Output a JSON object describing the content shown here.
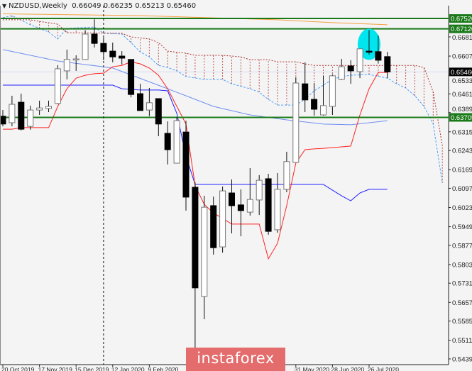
{
  "header": {
    "symbol": "NZDUSD,Weekly",
    "ohlc": "0.66049 0.66235 0.65213 0.65460"
  },
  "watermark": "instaforex",
  "chart_data": {
    "type": "candlestick",
    "symbol": "NZDUSD",
    "timeframe": "Weekly",
    "ylim": [
      0.5439,
      0.6775
    ],
    "grid": false,
    "colors": {
      "bull": "#ffffff",
      "bear": "#000000",
      "tenkan": "#ff2020",
      "kijun": "#2020ff",
      "ma_light": "#6f8ff0",
      "ma_orange": "#f5a040",
      "span_a": "#4aa0ff",
      "span_b": "#b03030",
      "level": "#1a7a1a",
      "highlight": "#00e5ee",
      "background": "#f4f4f4"
    },
    "y_ticks": [
      "0.67520",
      "0.67120",
      "0.66810",
      "0.66070",
      "0.65330",
      "0.64610",
      "0.63890",
      "0.63705",
      "0.63150",
      "0.62430",
      "0.61690",
      "0.60970",
      "0.60230",
      "0.59490",
      "0.58770",
      "0.58030",
      "0.57310",
      "0.56570",
      "0.55850",
      "0.55110",
      "0.54390"
    ],
    "x_labels": [
      {
        "index": 0,
        "text": "20 Oct 2019"
      },
      {
        "index": 4,
        "text": "17 Nov 2019"
      },
      {
        "index": 8,
        "text": "15 Dec 2019"
      },
      {
        "index": 12,
        "text": "12 Jan 2020"
      },
      {
        "index": 16,
        "text": "9 Feb 2020"
      },
      {
        "index": 32,
        "text": "31 May 2020"
      },
      {
        "index": 36,
        "text": "28 Jun 2020"
      },
      {
        "index": 40,
        "text": "26 Jul 2020"
      }
    ],
    "levels": [
      {
        "price": 0.6752,
        "label": "0.67520"
      },
      {
        "price": 0.6712,
        "label": "0.67120"
      },
      {
        "price": 0.63705,
        "label": "0.63705"
      }
    ],
    "current_price": {
      "price": 0.6546,
      "label": "0.65460"
    },
    "vertical_marker_index": 11,
    "highlight_index": 40,
    "candles": [
      [
        0.6375,
        0.6399,
        0.6336,
        0.6345
      ],
      [
        0.635,
        0.6454,
        0.6336,
        0.6421
      ],
      [
        0.6429,
        0.6462,
        0.632,
        0.6325
      ],
      [
        0.6336,
        0.6416,
        0.6323,
        0.6399
      ],
      [
        0.6399,
        0.6435,
        0.638,
        0.6407
      ],
      [
        0.6405,
        0.6435,
        0.6391,
        0.6413
      ],
      [
        0.6424,
        0.6572,
        0.6421,
        0.6558
      ],
      [
        0.655,
        0.6632,
        0.6517,
        0.6594
      ],
      [
        0.6594,
        0.661,
        0.655,
        0.6596
      ],
      [
        0.6594,
        0.6706,
        0.6594,
        0.6692
      ],
      [
        0.6692,
        0.6749,
        0.664,
        0.6656
      ],
      [
        0.6656,
        0.6678,
        0.6591,
        0.6624
      ],
      [
        0.6626,
        0.6659,
        0.6583,
        0.6604
      ],
      [
        0.6607,
        0.6626,
        0.6574,
        0.6599
      ],
      [
        0.6594,
        0.6594,
        0.6448,
        0.6459
      ],
      [
        0.6462,
        0.65,
        0.6397,
        0.6397
      ],
      [
        0.6399,
        0.6484,
        0.6375,
        0.6427
      ],
      [
        0.6443,
        0.6443,
        0.6298,
        0.6345
      ],
      [
        0.6309,
        0.6355,
        0.6189,
        0.6246
      ],
      [
        0.6194,
        0.6372,
        0.6194,
        0.6358
      ],
      [
        0.6314,
        0.6358,
        0.6011,
        0.6063
      ],
      [
        0.6101,
        0.612,
        0.5477,
        0.5713
      ],
      [
        0.568,
        0.6068,
        0.5592,
        0.6024
      ],
      [
        0.603,
        0.6065,
        0.5841,
        0.5868
      ],
      [
        0.5871,
        0.6104,
        0.5849,
        0.6087
      ],
      [
        0.6079,
        0.6131,
        0.5923,
        0.603
      ],
      [
        0.6033,
        0.6093,
        0.5912,
        0.6011
      ],
      [
        0.6005,
        0.6175,
        0.5992,
        0.6054
      ],
      [
        0.6052,
        0.6148,
        0.5994,
        0.6128
      ],
      [
        0.6134,
        0.6153,
        0.5918,
        0.5931
      ],
      [
        0.5937,
        0.6156,
        0.5926,
        0.6093
      ],
      [
        0.6093,
        0.6238,
        0.6082,
        0.62
      ],
      [
        0.6197,
        0.6525,
        0.6197,
        0.6503
      ],
      [
        0.65,
        0.6583,
        0.6391,
        0.6438
      ],
      [
        0.644,
        0.6503,
        0.6377,
        0.6402
      ],
      [
        0.638,
        0.6531,
        0.6377,
        0.6416
      ],
      [
        0.6413,
        0.6536,
        0.638,
        0.6531
      ],
      [
        0.6517,
        0.6596,
        0.6514,
        0.6566
      ],
      [
        0.6569,
        0.6591,
        0.65,
        0.655
      ],
      [
        0.6547,
        0.6635,
        0.6522,
        0.6635
      ],
      [
        0.6626,
        0.6708,
        0.6613,
        0.6624
      ],
      [
        0.6624,
        0.6687,
        0.6578,
        0.6591
      ],
      [
        0.66049,
        0.66235,
        0.65213,
        0.6546
      ]
    ],
    "tenkan": [
      0.6325,
      0.6325,
      0.6331,
      0.6331,
      0.6331,
      0.6331,
      0.6413,
      0.6481,
      0.6522,
      0.6533,
      0.6539,
      0.6541,
      0.6566,
      0.6571,
      0.6585,
      0.6577,
      0.6561,
      0.6533,
      0.6481,
      0.6413,
      0.6345,
      0.6107,
      0.6035,
      0.6002,
      0.5981,
      0.5959,
      0.5959,
      0.5959,
      0.5959,
      0.5825,
      0.5885,
      0.603,
      0.6194,
      0.6246,
      0.6249,
      0.6251,
      0.6254,
      0.6257,
      0.626,
      0.638,
      0.6481,
      0.6544,
      0.6544
    ],
    "kijun": [
      0.6495,
      0.6495,
      0.6495,
      0.6495,
      0.6495,
      0.6495,
      0.6495,
      0.6495,
      0.6495,
      0.6495,
      0.6495,
      0.6495,
      0.6495,
      0.6481,
      0.6479,
      0.6476,
      0.6476,
      0.6476,
      0.6473,
      0.6386,
      0.6221,
      0.6112,
      0.6112,
      0.6112,
      0.6112,
      0.6112,
      0.6112,
      0.6112,
      0.6112,
      0.6112,
      0.6112,
      0.6112,
      0.6112,
      0.6112,
      0.6112,
      0.6112,
      0.609,
      0.6068,
      0.6049,
      0.6079,
      0.6093,
      0.6093,
      0.6093
    ],
    "ma_light": [
      [
        0,
        0.6632
      ],
      [
        6,
        0.6588
      ],
      [
        12,
        0.6561
      ],
      [
        18,
        0.6481
      ],
      [
        23,
        0.6413
      ],
      [
        27,
        0.638
      ],
      [
        31,
        0.6361
      ],
      [
        35,
        0.6345
      ],
      [
        38,
        0.6342
      ],
      [
        42,
        0.6358
      ]
    ],
    "ma_orange": [
      [
        0,
        0.677
      ],
      [
        15,
        0.6763
      ],
      [
        30,
        0.6747
      ],
      [
        36,
        0.6736
      ],
      [
        42,
        0.6728
      ]
    ],
    "span_a": [
      [
        0,
        0.6755
      ],
      [
        1,
        0.6763
      ],
      [
        3,
        0.6728
      ],
      [
        5,
        0.67
      ],
      [
        6,
        0.6673
      ],
      [
        7,
        0.6714
      ],
      [
        10,
        0.6719
      ],
      [
        11,
        0.6695
      ],
      [
        13,
        0.6692
      ],
      [
        14,
        0.6659
      ],
      [
        15,
        0.6623
      ],
      [
        16,
        0.6604
      ],
      [
        17,
        0.6571
      ],
      [
        18,
        0.6563
      ],
      [
        19,
        0.655
      ],
      [
        20,
        0.6528
      ],
      [
        22,
        0.6517
      ],
      [
        24,
        0.6517
      ],
      [
        25,
        0.65
      ],
      [
        27,
        0.6481
      ],
      [
        28,
        0.6468
      ],
      [
        29,
        0.644
      ],
      [
        30,
        0.6418
      ],
      [
        32,
        0.6418
      ],
      [
        33,
        0.644
      ],
      [
        34,
        0.6473
      ],
      [
        35,
        0.6495
      ],
      [
        36,
        0.6517
      ],
      [
        37,
        0.6528
      ],
      [
        38,
        0.6533
      ],
      [
        40,
        0.6536
      ],
      [
        42,
        0.6522
      ],
      [
        43,
        0.65
      ],
      [
        44,
        0.6484
      ],
      [
        45,
        0.6454
      ],
      [
        46,
        0.6413
      ],
      [
        47,
        0.6345
      ],
      [
        48,
        0.6118
      ]
    ],
    "span_b": [
      [
        0,
        0.6747
      ],
      [
        3,
        0.6747
      ],
      [
        4,
        0.6741
      ],
      [
        6,
        0.673
      ],
      [
        7,
        0.6697
      ],
      [
        13,
        0.6695
      ],
      [
        14,
        0.6681
      ],
      [
        16,
        0.6673
      ],
      [
        17,
        0.6659
      ],
      [
        18,
        0.6626
      ],
      [
        20,
        0.6618
      ],
      [
        21,
        0.661
      ],
      [
        24,
        0.661
      ],
      [
        26,
        0.6604
      ],
      [
        27,
        0.6593
      ],
      [
        29,
        0.6593
      ],
      [
        30,
        0.6585
      ],
      [
        32,
        0.6585
      ],
      [
        33,
        0.6577
      ],
      [
        34,
        0.6571
      ],
      [
        45,
        0.6571
      ],
      [
        46,
        0.6563
      ],
      [
        47,
        0.6468
      ],
      [
        48,
        0.6262
      ]
    ]
  }
}
